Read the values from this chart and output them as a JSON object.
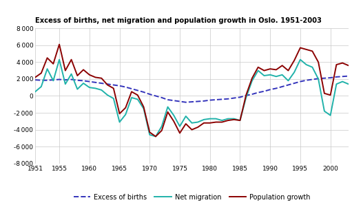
{
  "title": "Excess of births, net migration and population growth in Oslo. 1951-2003",
  "xlim": [
    1951,
    2003
  ],
  "ylim": [
    -8000,
    8000
  ],
  "yticks": [
    -8000,
    -6000,
    -4000,
    -2000,
    0,
    2000,
    4000,
    6000,
    8000
  ],
  "xticks": [
    1951,
    1955,
    1960,
    1965,
    1970,
    1975,
    1980,
    1985,
    1990,
    1995,
    2000
  ],
  "excess_births": {
    "years": [
      1951,
      1952,
      1953,
      1954,
      1955,
      1956,
      1957,
      1958,
      1959,
      1960,
      1961,
      1962,
      1963,
      1964,
      1965,
      1966,
      1967,
      1968,
      1969,
      1970,
      1971,
      1972,
      1973,
      1974,
      1975,
      1976,
      1977,
      1978,
      1979,
      1980,
      1981,
      1982,
      1983,
      1984,
      1985,
      1986,
      1987,
      1988,
      1989,
      1990,
      1991,
      1992,
      1993,
      1994,
      1995,
      1996,
      1997,
      1998,
      1999,
      2000,
      2001,
      2002,
      2003
    ],
    "values": [
      1900,
      1850,
      1850,
      1900,
      1950,
      1900,
      1950,
      1850,
      1800,
      1700,
      1600,
      1500,
      1400,
      1300,
      1200,
      1050,
      850,
      650,
      450,
      200,
      0,
      -200,
      -450,
      -550,
      -650,
      -750,
      -700,
      -650,
      -600,
      -500,
      -450,
      -400,
      -350,
      -250,
      -150,
      50,
      200,
      400,
      550,
      750,
      900,
      1100,
      1300,
      1500,
      1700,
      1850,
      1950,
      2050,
      2100,
      2150,
      2250,
      2300,
      2350
    ],
    "color": "#3333bb",
    "linestyle": "--",
    "linewidth": 1.4,
    "label": "Excess of births"
  },
  "net_migration": {
    "years": [
      1951,
      1952,
      1953,
      1954,
      1955,
      1956,
      1957,
      1958,
      1959,
      1960,
      1961,
      1962,
      1963,
      1964,
      1965,
      1966,
      1967,
      1968,
      1969,
      1970,
      1971,
      1972,
      1973,
      1974,
      1975,
      1976,
      1977,
      1978,
      1979,
      1980,
      1981,
      1982,
      1983,
      1984,
      1985,
      1986,
      1987,
      1988,
      1989,
      1990,
      1991,
      1992,
      1993,
      1994,
      1995,
      1996,
      1997,
      1998,
      1999,
      2000,
      2001,
      2002,
      2003
    ],
    "values": [
      500,
      1100,
      3200,
      1800,
      4300,
      1400,
      2600,
      800,
      1500,
      1000,
      900,
      700,
      100,
      -300,
      -3100,
      -2200,
      -200,
      -400,
      -1500,
      -4600,
      -4800,
      -3600,
      -1300,
      -2300,
      -3600,
      -2400,
      -3200,
      -3100,
      -2800,
      -2700,
      -2700,
      -2900,
      -2700,
      -2700,
      -2900,
      -200,
      1800,
      3000,
      2400,
      2500,
      2300,
      2500,
      1800,
      2800,
      4300,
      3700,
      3400,
      2000,
      -1800,
      -2300,
      1400,
      1700,
      1400
    ],
    "color": "#20b2aa",
    "linestyle": "-",
    "linewidth": 1.4,
    "label": "Net migration"
  },
  "population_growth": {
    "years": [
      1951,
      1952,
      1953,
      1954,
      1955,
      1956,
      1957,
      1958,
      1959,
      1960,
      1961,
      1962,
      1963,
      1964,
      1965,
      1966,
      1967,
      1968,
      1969,
      1970,
      1971,
      1972,
      1973,
      1974,
      1975,
      1976,
      1977,
      1978,
      1979,
      1980,
      1981,
      1982,
      1983,
      1984,
      1985,
      1986,
      1987,
      1988,
      1989,
      1990,
      1991,
      1992,
      1993,
      1994,
      1995,
      1996,
      1997,
      1998,
      1999,
      2000,
      2001,
      2002,
      2003
    ],
    "values": [
      2200,
      2700,
      4500,
      3800,
      6100,
      3000,
      4300,
      2400,
      3100,
      2500,
      2200,
      2100,
      1300,
      900,
      -2100,
      -1400,
      500,
      100,
      -1300,
      -4300,
      -4800,
      -4100,
      -1900,
      -3000,
      -4400,
      -3300,
      -4000,
      -3700,
      -3200,
      -3200,
      -3100,
      -3100,
      -2900,
      -2800,
      -2900,
      100,
      2100,
      3400,
      3000,
      3200,
      3100,
      3600,
      3000,
      4200,
      5700,
      5500,
      5300,
      4000,
      300,
      100,
      3700,
      3900,
      3600
    ],
    "color": "#8b0000",
    "linestyle": "-",
    "linewidth": 1.4,
    "label": "Population growth"
  },
  "background_color": "#ffffff",
  "grid_color": "#c8c8c8"
}
